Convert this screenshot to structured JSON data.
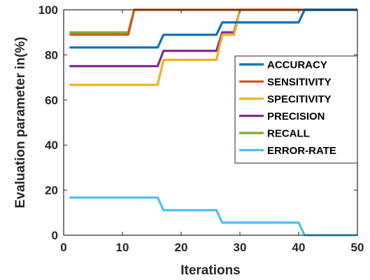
{
  "chart_data": {
    "type": "line",
    "title": "",
    "xlabel": "Iterations",
    "ylabel": "Evaluation parameter in(%)",
    "xlim": [
      0,
      50
    ],
    "ylim": [
      0,
      100
    ],
    "xticks": [
      "0",
      "10",
      "20",
      "30",
      "40",
      "50"
    ],
    "yticks": [
      "0",
      "20",
      "40",
      "60",
      "80",
      "100"
    ],
    "grid": false,
    "legend_position": "right",
    "series": [
      {
        "name": "ACCURACY",
        "color": "#0072BD",
        "points": [
          [
            1,
            83.3
          ],
          [
            16,
            83.3
          ],
          [
            17,
            88.9
          ],
          [
            26,
            88.9
          ],
          [
            27,
            94.4
          ],
          [
            40,
            94.4
          ],
          [
            41,
            100
          ],
          [
            50,
            100
          ]
        ]
      },
      {
        "name": "SENSITIVITY",
        "color": "#D95319",
        "points": [
          [
            1,
            89
          ],
          [
            11,
            89
          ],
          [
            12,
            100
          ],
          [
            50,
            100
          ]
        ]
      },
      {
        "name": "SPECITIVITY",
        "color": "#EDB120",
        "points": [
          [
            1,
            66.7
          ],
          [
            16,
            66.7
          ],
          [
            17,
            77.8
          ],
          [
            26,
            77.8
          ],
          [
            27,
            88.9
          ],
          [
            29,
            88.9
          ],
          [
            30,
            100
          ],
          [
            50,
            100
          ]
        ]
      },
      {
        "name": "PRECISION",
        "color": "#7E2F8E",
        "points": [
          [
            1,
            75
          ],
          [
            16,
            75
          ],
          [
            17,
            81.8
          ],
          [
            26,
            81.8
          ],
          [
            27,
            90
          ],
          [
            29,
            90
          ],
          [
            30,
            100
          ],
          [
            50,
            100
          ]
        ]
      },
      {
        "name": "RECALL",
        "color": "#77AC30",
        "points": [
          [
            1,
            90
          ],
          [
            11,
            90
          ],
          [
            12,
            100
          ],
          [
            50,
            100
          ]
        ]
      },
      {
        "name": "ERROR-RATE",
        "color": "#4DBEEE",
        "points": [
          [
            1,
            16.7
          ],
          [
            16,
            16.7
          ],
          [
            17,
            11.1
          ],
          [
            26,
            11.1
          ],
          [
            27,
            5.6
          ],
          [
            40,
            5.6
          ],
          [
            41,
            0
          ],
          [
            50,
            0
          ]
        ]
      }
    ]
  }
}
